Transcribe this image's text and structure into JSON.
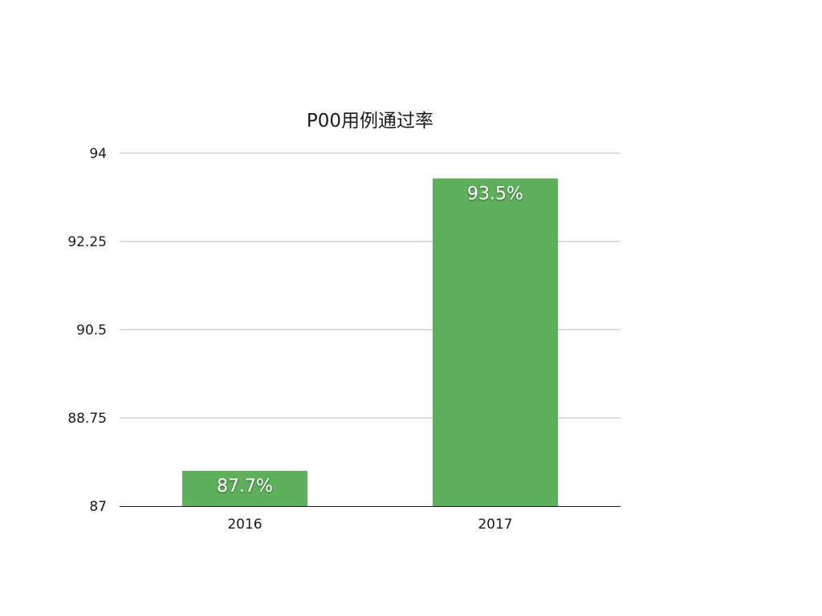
{
  "chart_data": {
    "type": "bar",
    "title": "P00用例通过率",
    "categories": [
      "2016",
      "2017"
    ],
    "series": [
      {
        "values": [
          87.7,
          93.5
        ],
        "data_labels": [
          "87.7%",
          "93.5%"
        ],
        "color": "#5eb05d"
      }
    ],
    "ylim": [
      87,
      94
    ],
    "y_ticks": [
      87,
      88.75,
      90.5,
      92.25,
      94
    ],
    "y_tick_labels": [
      "87",
      "88.75",
      "90.5",
      "92.25",
      "94"
    ],
    "grid": true,
    "legend": "none",
    "colors": {
      "bar": "#5eb05d",
      "grid": "#bdbdbd",
      "axis": "#1a1a1a",
      "text": "#1a1a1a",
      "label": "#ffffff"
    }
  }
}
